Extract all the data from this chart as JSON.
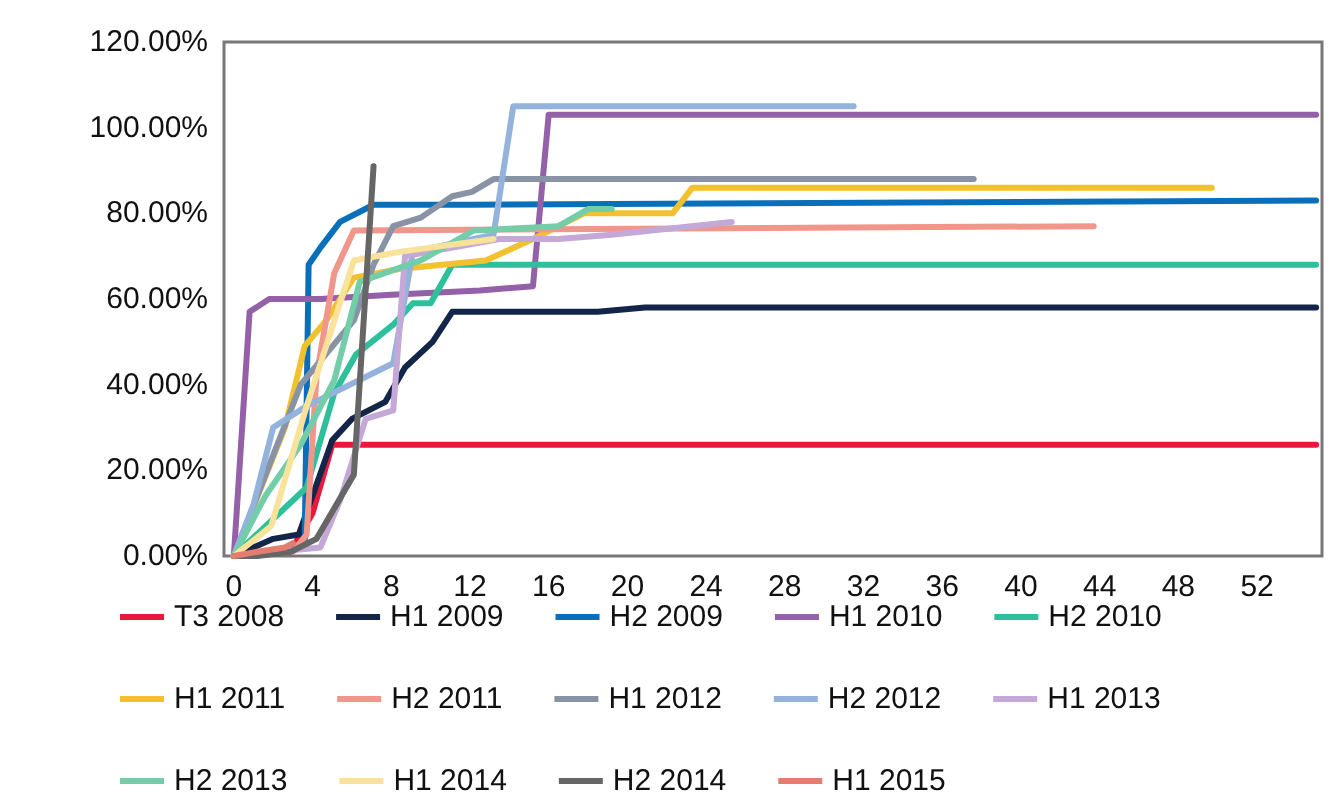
{
  "chart_data": {
    "type": "line",
    "xlim": [
      -0.5,
      55.3
    ],
    "xticks": [
      0,
      4,
      8,
      12,
      16,
      20,
      24,
      28,
      32,
      36,
      40,
      44,
      48,
      52
    ],
    "ylim": [
      0,
      120
    ],
    "yticks": [
      {
        "value": 0,
        "label": "0.00%"
      },
      {
        "value": 20,
        "label": "20.00%"
      },
      {
        "value": 40,
        "label": "40.00%"
      },
      {
        "value": 60,
        "label": "60.00%"
      },
      {
        "value": 80,
        "label": "80.00%"
      },
      {
        "value": 100,
        "label": "100.00%"
      },
      {
        "value": 120,
        "label": "120.00%"
      }
    ],
    "grid": false,
    "legend": "bottom",
    "marker": "none",
    "line_style": "solid",
    "series": [
      {
        "name": "T3 2008",
        "color": "#e8193c",
        "x": [
          0,
          3,
          4,
          5,
          55
        ],
        "values": [
          0,
          2,
          10,
          26,
          26
        ]
      },
      {
        "name": "H1 2009",
        "color": "#14254a",
        "x": [
          0,
          2,
          3.3,
          5,
          6,
          7.7,
          8.7,
          10.1,
          11.1,
          18.5,
          20.9,
          55
        ],
        "values": [
          0,
          4,
          5,
          27,
          32,
          36,
          44,
          50,
          57,
          57,
          58,
          58
        ]
      },
      {
        "name": "H2 2009",
        "color": "#0a6fba",
        "x": [
          0,
          3,
          3.6,
          3.8,
          4.4,
          5.4,
          7.1,
          12,
          55
        ],
        "values": [
          0,
          2,
          3,
          68,
          72,
          78,
          82,
          82,
          83
        ]
      },
      {
        "name": "H1 2010",
        "color": "#9460a8",
        "x": [
          0,
          0.8,
          1.8,
          4.4,
          8,
          12.5,
          15.2,
          16,
          55
        ],
        "values": [
          0,
          57,
          60,
          60,
          61,
          62,
          63,
          103,
          103
        ]
      },
      {
        "name": "H2 2010",
        "color": "#2ebf9b",
        "x": [
          0,
          3.7,
          5.1,
          6.2,
          8.1,
          9.1,
          10,
          11.1,
          55
        ],
        "values": [
          0,
          16,
          38,
          47,
          54,
          59,
          59,
          68,
          68
        ]
      },
      {
        "name": "H1 2011",
        "color": "#f2c12e",
        "x": [
          0,
          2.6,
          3.6,
          4.7,
          6.1,
          8.4,
          12.8,
          15.2,
          17.8,
          22.3,
          23.3,
          49.7
        ],
        "values": [
          0,
          30,
          49,
          55,
          65,
          67,
          69,
          74,
          80,
          80,
          86,
          86
        ]
      },
      {
        "name": "H2 2011",
        "color": "#f0968a",
        "x": [
          0,
          3,
          3.7,
          4.2,
          5.1,
          6.1,
          43.7
        ],
        "values": [
          0,
          1,
          5,
          42,
          66,
          76,
          77
        ]
      },
      {
        "name": "H1 2012",
        "color": "#8894a6",
        "x": [
          0,
          3.4,
          6.1,
          7.1,
          8.1,
          9.5,
          11.1,
          12.1,
          13.2,
          37.6
        ],
        "values": [
          0,
          40,
          55,
          68,
          77,
          79,
          84,
          85,
          88,
          88
        ]
      },
      {
        "name": "H2 2012",
        "color": "#93b3dc",
        "x": [
          0,
          1,
          2,
          3.7,
          8.1,
          9.1,
          13.2,
          14.2,
          31.5
        ],
        "values": [
          0,
          12,
          30,
          35,
          45,
          71,
          75,
          105,
          105
        ]
      },
      {
        "name": "H1 2013",
        "color": "#c3a8d8",
        "x": [
          0,
          4.4,
          5.4,
          6.7,
          8.1,
          8.7,
          13.5,
          16.5,
          19.2,
          25.3
        ],
        "values": [
          0,
          2,
          13,
          32,
          34,
          70,
          74,
          74,
          75,
          78
        ]
      },
      {
        "name": "H2 2013",
        "color": "#72cda8",
        "x": [
          0,
          1.6,
          3.4,
          5.1,
          6.4,
          9.5,
          12.2,
          16.5,
          18,
          19.2
        ],
        "values": [
          0,
          14,
          26,
          41,
          64,
          69,
          76,
          77,
          81,
          81
        ]
      },
      {
        "name": "H1 2014",
        "color": "#f9e29a",
        "x": [
          0,
          1.9,
          3.7,
          6.1,
          8.4,
          13.2
        ],
        "values": [
          0,
          7,
          35,
          69,
          71,
          74
        ]
      },
      {
        "name": "H2 2014",
        "color": "#666666",
        "x": [
          0,
          1.2,
          2.9,
          4.2,
          6.1,
          7.1
        ],
        "values": [
          0,
          0,
          1,
          4,
          19,
          91
        ]
      },
      {
        "name": "H1 2015",
        "color": "#e37d70",
        "x": [
          0,
          1.2,
          2.6,
          3
        ],
        "values": [
          0,
          1,
          2,
          3
        ]
      }
    ]
  }
}
